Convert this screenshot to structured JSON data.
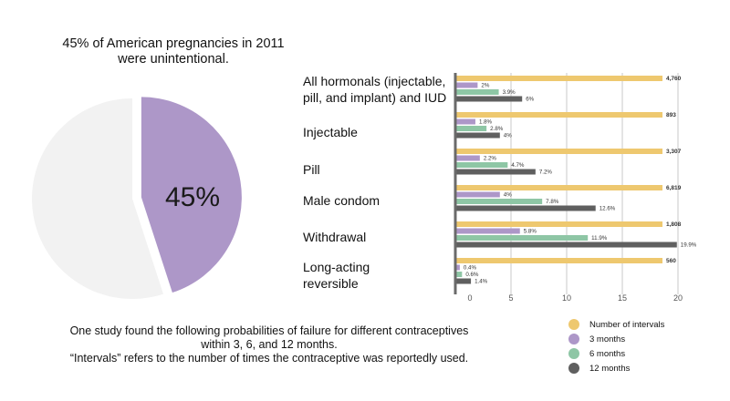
{
  "pie": {
    "title_line1": "45% of American pregnancies in 2011",
    "title_line2": "were unintentional.",
    "percent": 45,
    "label": "45%",
    "colors": {
      "highlight": "#ad97c8",
      "rest": "#f2f2f2"
    }
  },
  "caption": {
    "line1": "One study found the following probabilities of failure for different contraceptives",
    "line2": "within 3, 6, and 12 months.",
    "line3": "“Intervals” refers to the number of times the contraceptive was reportedly used."
  },
  "legend": [
    {
      "label": "Number of intervals",
      "color": "#eec86f"
    },
    {
      "label": "3 months",
      "color": "#ad97c8"
    },
    {
      "label": "6 months",
      "color": "#8ec6a5"
    },
    {
      "label": "12 months",
      "color": "#5f5f5f"
    }
  ],
  "chart_data": [
    {
      "type": "pie",
      "title": "45% of American pregnancies in 2011 were unintentional.",
      "values": [
        45,
        55
      ],
      "labels": [
        "45%",
        ""
      ]
    },
    {
      "type": "bar",
      "orientation": "horizontal",
      "categories": [
        [
          "All hormonals (injectable,",
          "pill, and implant) and IUD"
        ],
        [
          "Injectable"
        ],
        [
          "Pill"
        ],
        [
          "Male condom"
        ],
        [
          "Withdrawal"
        ],
        [
          "Long-acting",
          "reversible"
        ]
      ],
      "x_ticks": [
        "0",
        "5",
        "10",
        "15",
        "20"
      ],
      "xlim": [
        0,
        20
      ],
      "series": [
        {
          "name": "Number of intervals",
          "color": "#eec86f",
          "values": [
            4760,
            893,
            3307,
            6819,
            1808,
            560
          ],
          "labels": [
            "4,760",
            "893",
            "3,307",
            "6,819",
            "1,808",
            "560"
          ]
        },
        {
          "name": "3 months",
          "color": "#ad97c8",
          "values": [
            2,
            1.8,
            2.2,
            4,
            5.8,
            0.4
          ],
          "labels": [
            "2%",
            "1.8%",
            "2.2%",
            "4%",
            "5.8%",
            "0.4%"
          ]
        },
        {
          "name": "6 months",
          "color": "#8ec6a5",
          "values": [
            3.9,
            2.8,
            4.7,
            7.8,
            11.9,
            0.6
          ],
          "labels": [
            "3.9%",
            "2.8%",
            "4.7%",
            "7.8%",
            "11.9%",
            "0.6%"
          ]
        },
        {
          "name": "12 months",
          "color": "#5f5f5f",
          "values": [
            6,
            4,
            7.2,
            12.6,
            19.9,
            1.4
          ],
          "labels": [
            "6%",
            "4%",
            "7.2%",
            "12.6%",
            "19.9%",
            "1.4%"
          ]
        }
      ],
      "legend_position": "bottom-right",
      "grid": true
    }
  ]
}
